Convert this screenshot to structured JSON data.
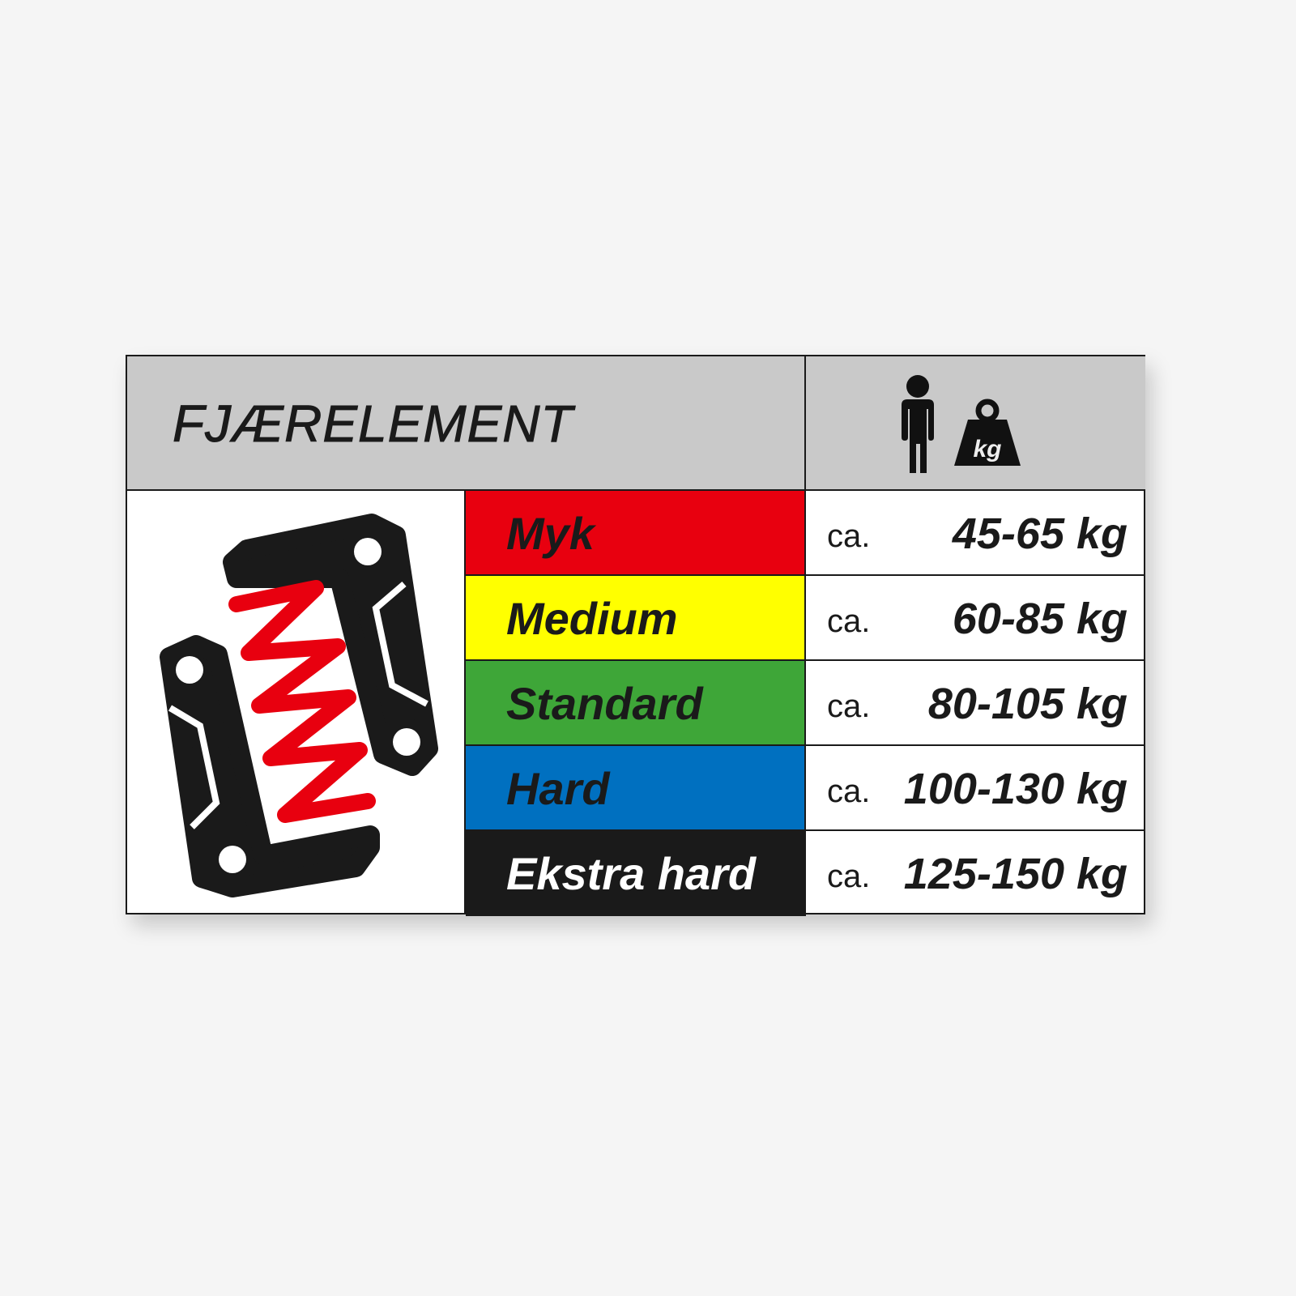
{
  "header": {
    "title": "FJÆRELEMENT",
    "icons": [
      "person-icon",
      "weight-kg-icon"
    ],
    "weight_icon_label": "kg"
  },
  "illustration": "spring-element-icon",
  "rows": [
    {
      "category": "Myk",
      "color": "#e8000f",
      "text_color": "#1a1a1a",
      "prefix": "ca.",
      "range": "45-65 kg"
    },
    {
      "category": "Medium",
      "color": "#ffff00",
      "text_color": "#1a1a1a",
      "prefix": "ca.",
      "range": "60-85 kg"
    },
    {
      "category": "Standard",
      "color": "#3ea638",
      "text_color": "#1a1a1a",
      "prefix": "ca.",
      "range": "80-105 kg"
    },
    {
      "category": "Hard",
      "color": "#0070c0",
      "text_color": "#1a1a1a",
      "prefix": "ca.",
      "range": "100-130 kg"
    },
    {
      "category": "Ekstra hard",
      "color": "#1a1a1a",
      "text_color": "#ffffff",
      "prefix": "ca.",
      "range": "125-150 kg"
    }
  ]
}
